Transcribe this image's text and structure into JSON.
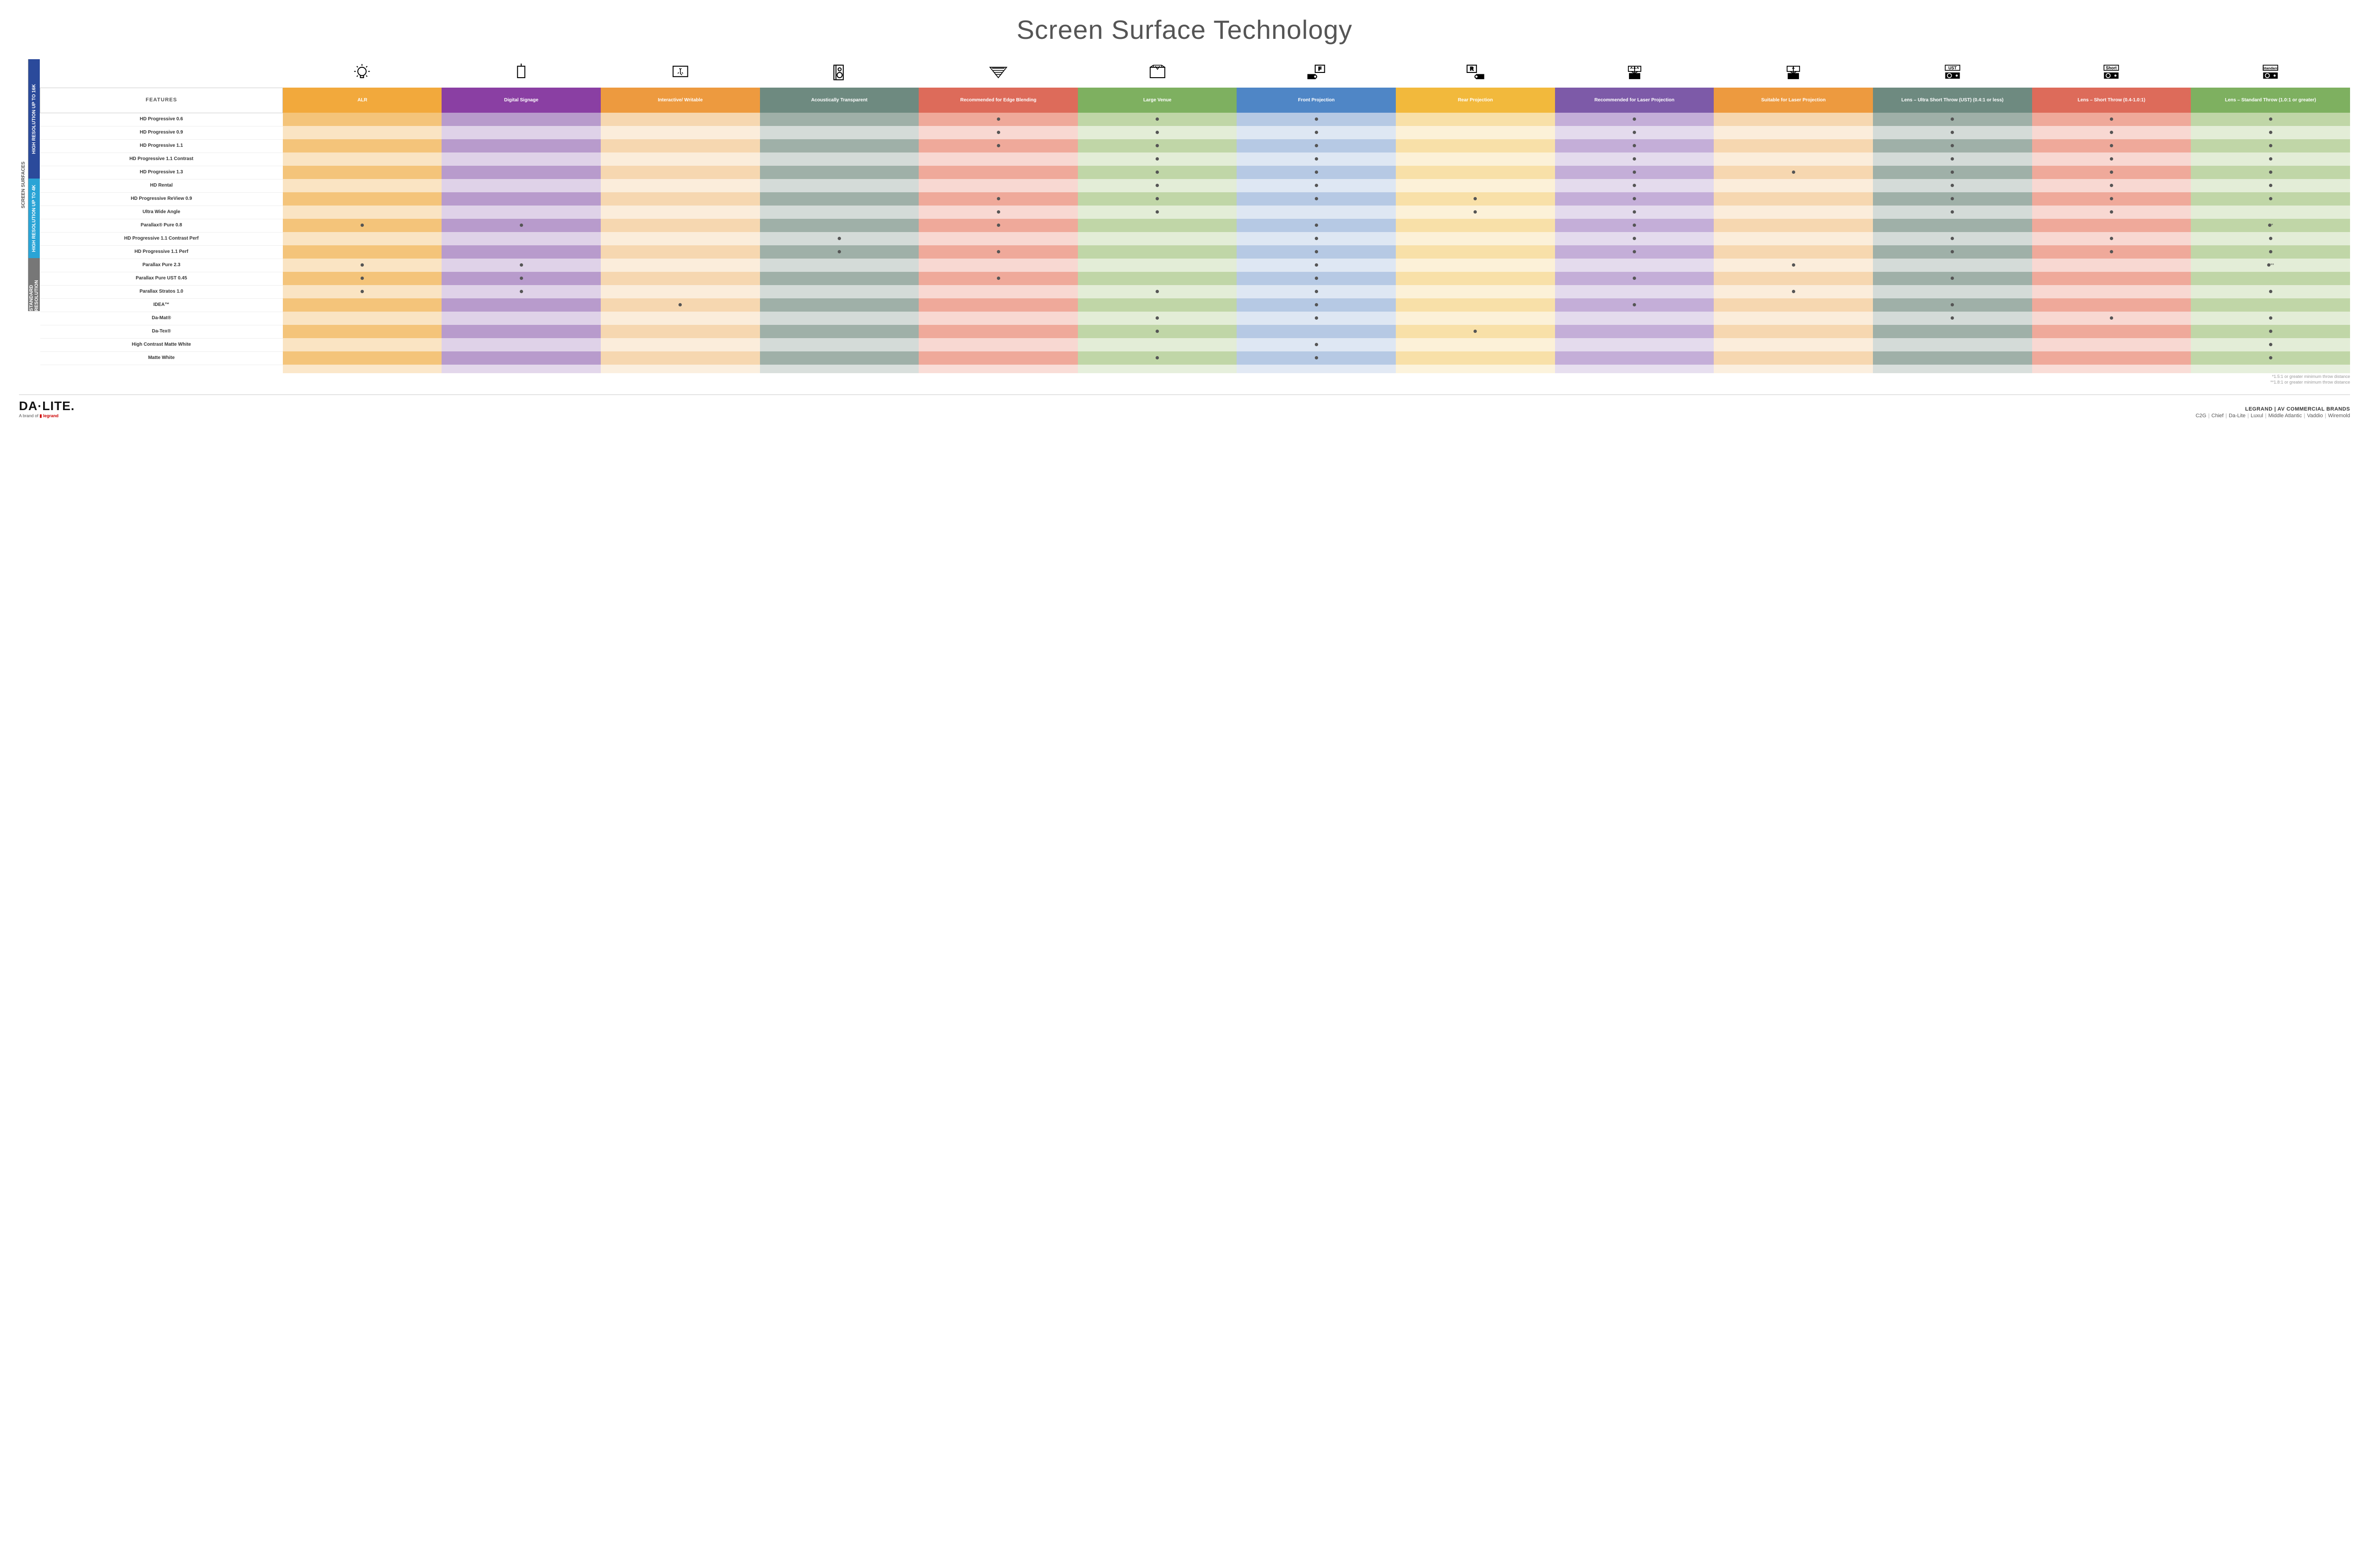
{
  "title": "Screen Surface Technology",
  "features_header": "FEATURES",
  "columns": [
    {
      "label": "ALR",
      "base": "#f4c47a",
      "header": "#f2a93c"
    },
    {
      "label": "Digital Signage",
      "base": "#b89bcc",
      "header": "#8a3fa3"
    },
    {
      "label": "Interactive/ Writable",
      "base": "#f6d7b0",
      "header": "#ed9a3f"
    },
    {
      "label": "Acoustically Transparent",
      "base": "#9fb0a8",
      "header": "#6e8a80"
    },
    {
      "label": "Recommended for Edge Blending",
      "base": "#efa99a",
      "header": "#dd6b5a"
    },
    {
      "label": "Large Venue",
      "base": "#c0d6a7",
      "header": "#7eb060"
    },
    {
      "label": "Front Projection",
      "base": "#b6c9e4",
      "header": "#4f86c6"
    },
    {
      "label": "Rear Projection",
      "base": "#f8e0a8",
      "header": "#f2b93c"
    },
    {
      "label": "Recommended for Laser Projection",
      "base": "#c4aed8",
      "header": "#7d5aa8"
    },
    {
      "label": "Suitable for Laser Projection",
      "base": "#f6d7b0",
      "header": "#ed9a3f"
    },
    {
      "label": "Lens – Ultra Short Throw (UST) (0.4:1 or less)",
      "base": "#9fb0a8",
      "header": "#6e8a80"
    },
    {
      "label": "Lens – Short Throw (0.4-1.0:1)",
      "base": "#efa99a",
      "header": "#dd6b5a"
    },
    {
      "label": "Lens – Standard Throw (1.0:1 or greater)",
      "base": "#c0d6a7",
      "header": "#7eb060"
    }
  ],
  "side_label": "SCREEN SURFACES",
  "groups": [
    {
      "label": "HIGH RESOLUTION UP TO 16K",
      "color": "#2b4a9b",
      "rows": 9
    },
    {
      "label": "HIGH RESOLUTION UP TO 4K",
      "color": "#2aa4d6",
      "rows": 6
    },
    {
      "label": "STANDARD RESOLUTION",
      "color": "#777777",
      "rows": 4
    }
  ],
  "rows": [
    {
      "label": "HD Progressive 0.6",
      "dots": [
        0,
        0,
        0,
        0,
        1,
        1,
        1,
        0,
        1,
        0,
        1,
        1,
        1
      ]
    },
    {
      "label": "HD Progressive 0.9",
      "dots": [
        0,
        0,
        0,
        0,
        1,
        1,
        1,
        0,
        1,
        0,
        1,
        1,
        1
      ]
    },
    {
      "label": "HD Progressive 1.1",
      "dots": [
        0,
        0,
        0,
        0,
        1,
        1,
        1,
        0,
        1,
        0,
        1,
        1,
        1
      ]
    },
    {
      "label": "HD Progressive 1.1 Contrast",
      "dots": [
        0,
        0,
        0,
        0,
        0,
        1,
        1,
        0,
        1,
        0,
        1,
        1,
        1
      ]
    },
    {
      "label": "HD Progressive 1.3",
      "dots": [
        0,
        0,
        0,
        0,
        0,
        1,
        1,
        0,
        1,
        1,
        1,
        1,
        1
      ]
    },
    {
      "label": "HD Rental",
      "dots": [
        0,
        0,
        0,
        0,
        0,
        1,
        1,
        0,
        1,
        0,
        1,
        1,
        1
      ]
    },
    {
      "label": "HD Progressive ReView 0.9",
      "dots": [
        0,
        0,
        0,
        0,
        1,
        1,
        1,
        1,
        1,
        0,
        1,
        1,
        1
      ]
    },
    {
      "label": "Ultra Wide Angle",
      "dots": [
        0,
        0,
        0,
        0,
        1,
        1,
        0,
        1,
        1,
        0,
        1,
        1,
        0
      ]
    },
    {
      "label": "Parallax® Pure 0.8",
      "dots": [
        1,
        1,
        0,
        0,
        1,
        0,
        1,
        0,
        1,
        0,
        0,
        0,
        "•*"
      ]
    },
    {
      "label": "HD Progressive 1.1 Contrast Perf",
      "dots": [
        0,
        0,
        0,
        1,
        0,
        0,
        1,
        0,
        1,
        0,
        1,
        1,
        1
      ]
    },
    {
      "label": "HD Progressive 1.1 Perf",
      "dots": [
        0,
        0,
        0,
        1,
        1,
        0,
        1,
        0,
        1,
        0,
        1,
        1,
        1
      ]
    },
    {
      "label": "Parallax Pure 2.3",
      "dots": [
        1,
        1,
        0,
        0,
        0,
        0,
        1,
        0,
        0,
        1,
        0,
        0,
        "•**"
      ]
    },
    {
      "label": "Parallax Pure UST 0.45",
      "dots": [
        1,
        1,
        0,
        0,
        1,
        0,
        1,
        0,
        1,
        0,
        1,
        0,
        0
      ]
    },
    {
      "label": "Parallax Stratos 1.0",
      "dots": [
        1,
        1,
        0,
        0,
        0,
        1,
        1,
        0,
        0,
        1,
        0,
        0,
        1
      ]
    },
    {
      "label": "IDEA™",
      "dots": [
        0,
        0,
        1,
        0,
        0,
        0,
        1,
        0,
        1,
        0,
        1,
        0,
        0
      ]
    },
    {
      "label": "Da-Mat®",
      "dots": [
        0,
        0,
        0,
        0,
        0,
        1,
        1,
        0,
        0,
        0,
        1,
        1,
        1
      ]
    },
    {
      "label": "Da-Tex®",
      "dots": [
        0,
        0,
        0,
        0,
        0,
        1,
        0,
        1,
        0,
        0,
        0,
        0,
        1
      ]
    },
    {
      "label": "High Contrast Matte White",
      "dots": [
        0,
        0,
        0,
        0,
        0,
        0,
        1,
        0,
        0,
        0,
        0,
        0,
        1
      ]
    },
    {
      "label": "Matte White",
      "dots": [
        0,
        0,
        0,
        0,
        0,
        1,
        1,
        0,
        0,
        0,
        0,
        0,
        1
      ]
    }
  ],
  "alt_lighten": 0.55,
  "row_alt_light": "#ffffff",
  "footnotes": [
    "*1.5:1 or greater minimum throw distance",
    "**1.8:1 or greater minimum throw distance"
  ],
  "footer": {
    "logo_main": "DA·LITE.",
    "logo_sub_prefix": "A brand of ",
    "logo_sub_brand": "legrand",
    "brands_title": "LEGRAND | AV COMMERCIAL BRANDS",
    "brands": [
      "C2G",
      "Chief",
      "Da-Lite",
      "Luxul",
      "Middle Atlantic",
      "Vaddio",
      "Wiremold"
    ]
  },
  "icons": [
    "bulb",
    "signage",
    "touch",
    "speaker",
    "edge",
    "venue",
    "front",
    "rear",
    "laser-rec",
    "laser-suit",
    "ust",
    "short",
    "standard"
  ]
}
